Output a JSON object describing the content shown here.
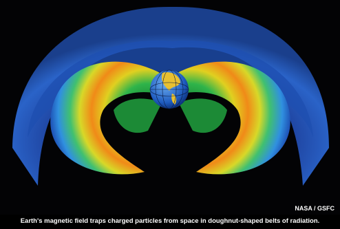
{
  "credit": "NASA / GSFC",
  "caption": "Earth's magnetic field traps charged particles from space in doughnut-shaped belts of radiation."
}
